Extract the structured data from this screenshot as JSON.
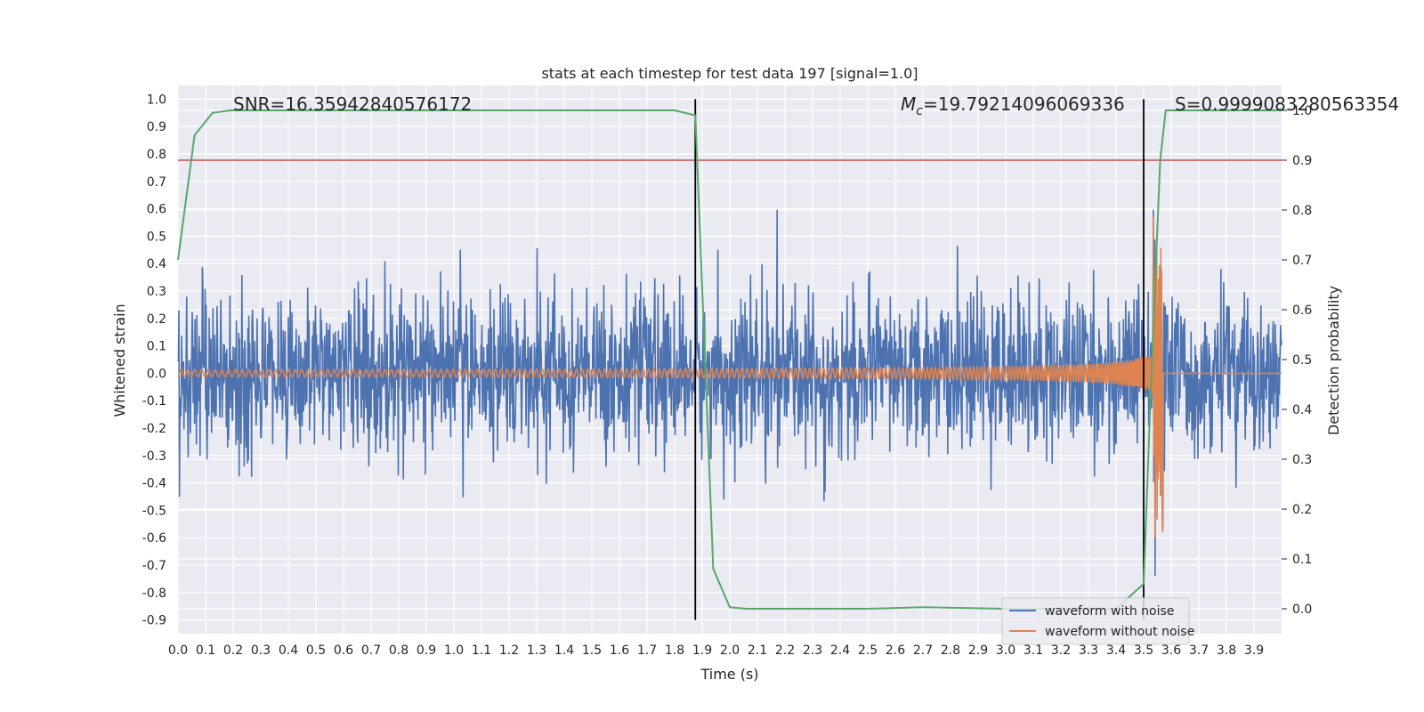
{
  "chart_data": {
    "type": "line",
    "title": "stats at each timestep for test data 197 [signal=1.0]",
    "xlabel": "Time (s)",
    "ylabel": "Whitened strain",
    "ylabel_right": "Detection probability",
    "xlim": [
      0.0,
      4.0
    ],
    "ylim": [
      -0.95,
      1.05
    ],
    "ylim_right": [
      -0.05,
      1.05
    ],
    "x_ticks": [
      "0.0",
      "0.1",
      "0.2",
      "0.3",
      "0.4",
      "0.5",
      "0.6",
      "0.7",
      "0.8",
      "0.9",
      "1.0",
      "1.1",
      "1.2",
      "1.3",
      "1.4",
      "1.5",
      "1.6",
      "1.7",
      "1.8",
      "1.9",
      "2.0",
      "2.1",
      "2.2",
      "2.3",
      "2.4",
      "2.5",
      "2.6",
      "2.7",
      "2.8",
      "2.9",
      "3.0",
      "3.1",
      "3.2",
      "3.3",
      "3.4",
      "3.5",
      "3.6",
      "3.7",
      "3.8",
      "3.9"
    ],
    "y_ticks": [
      "1.0",
      "0.9",
      "0.8",
      "0.7",
      "0.6",
      "0.5",
      "0.4",
      "0.3",
      "0.2",
      "0.1",
      "0.0",
      "-0.1",
      "-0.2",
      "-0.3",
      "-0.4",
      "-0.5",
      "-0.6",
      "-0.7",
      "-0.8",
      "-0.9"
    ],
    "y_ticks_right": [
      "1.0",
      "0.9",
      "0.8",
      "0.7",
      "0.6",
      "0.5",
      "0.4",
      "0.3",
      "0.2",
      "0.1",
      "0.0"
    ],
    "grid": true,
    "legend_placement": "lower-right",
    "annotations": {
      "snr": "SNR=16.35942840576172",
      "mc_symbol": "M",
      "mc_sub": "c",
      "mc_value": "=19.79214096069336",
      "s": "S=0.9999083280563354"
    },
    "threshold_line": {
      "y_right": 0.9,
      "color": "#c44e52"
    },
    "vertical_lines": {
      "x": [
        1.875,
        3.5
      ],
      "y_range": [
        -0.9,
        1.0
      ],
      "color": "#000000"
    },
    "series": [
      {
        "name": "waveform with noise",
        "color": "#4c72b0",
        "noise_amplitude": 0.3,
        "x_range": [
          0.0,
          4.0
        ]
      },
      {
        "name": "waveform without noise",
        "color": "#dd8452",
        "chirp_merger_time": 3.57,
        "x_range": [
          0.0,
          4.0
        ]
      },
      {
        "color": "#55a868",
        "axis": "right",
        "x": [
          0.0,
          0.06,
          0.125,
          0.19,
          1.0,
          1.5,
          1.8,
          1.875,
          1.94,
          2.0,
          2.06,
          2.5,
          2.7,
          3.0,
          3.2,
          3.4,
          3.5,
          3.53,
          3.56,
          3.58,
          4.0
        ],
        "y": [
          0.7,
          0.95,
          0.995,
          1.0,
          1.0,
          1.0,
          1.0,
          0.99,
          0.08,
          0.003,
          0.0,
          0.0,
          0.003,
          0.0,
          0.0,
          0.0,
          0.05,
          0.5,
          0.9,
          1.0,
          1.0
        ]
      }
    ]
  }
}
